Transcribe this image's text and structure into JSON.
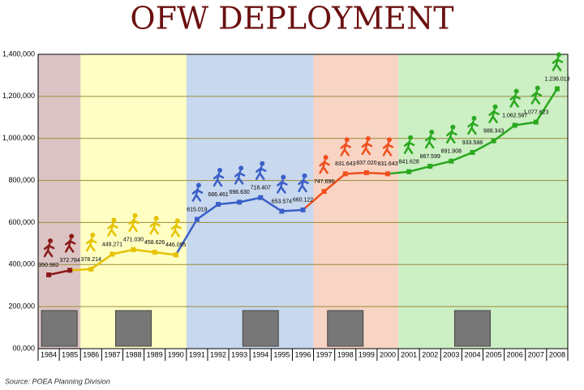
{
  "chart_data": {
    "type": "line",
    "title": "OFW DEPLOYMENT",
    "source": "Source: POEA Planning Division",
    "categories": [
      "1984",
      "1985",
      "1986",
      "1987",
      "1988",
      "1989",
      "1990",
      "1991",
      "1992",
      "1993",
      "1994",
      "1995",
      "1996",
      "1997",
      "1998",
      "1999",
      "2000",
      "2001",
      "2002",
      "2003",
      "2004",
      "2005",
      "2006",
      "2007",
      "2008"
    ],
    "values": [
      350982,
      372784,
      378214,
      449271,
      471030,
      458626,
      446095,
      615019,
      686461,
      696630,
      718407,
      653574,
      660122,
      747696,
      831643,
      837020,
      831643,
      841628,
      867599,
      891908,
      933588,
      988343,
      1062567,
      1077623,
      1236013
    ],
    "value_labels": [
      "350.982",
      "372.784",
      "378.214",
      "449.271",
      "471.030",
      "458.626",
      "446.095",
      "615.019",
      "686.461",
      "696.630",
      "718.407",
      "653.574",
      "660.122",
      "747.696",
      "831.643",
      "837.020",
      "831.643",
      "841.628",
      "867.599",
      "891.908",
      "933.588",
      "988.343",
      "1.062.567",
      "1.077.623",
      "1.236.013"
    ],
    "point_colors": [
      "#8b1a1a",
      "#8b1a1a",
      "#e6c200",
      "#e6c200",
      "#e6c200",
      "#e6c200",
      "#e6c200",
      "#3a5fc8",
      "#3a5fc8",
      "#3a5fc8",
      "#3a5fc8",
      "#3a5fc8",
      "#3a5fc8",
      "#f0501e",
      "#f0501e",
      "#f0501e",
      "#f0501e",
      "#2aa81e",
      "#2aa81e",
      "#2aa81e",
      "#2aa81e",
      "#2aa81e",
      "#2aa81e",
      "#2aa81e",
      "#2aa81e"
    ],
    "band_colors": [
      "#dcc4c4",
      "#dcc4c4",
      "#ffffc4",
      "#ffffc4",
      "#ffffc4",
      "#ffffc4",
      "#ffffc4",
      "#c8d8ef",
      "#c8d8ef",
      "#c8d8ef",
      "#c8d8ef",
      "#c8d8ef",
      "#c8d8ef",
      "#f8d4c4",
      "#f8d4c4",
      "#f8d4c4",
      "#f8d4c4",
      "#ccefc4",
      "#ccefc4",
      "#ccefc4",
      "#ccefc4",
      "#ccefc4",
      "#ccefc4",
      "#ccefc4",
      "#ccefc4"
    ],
    "ylim": [
      0,
      1400000
    ],
    "yticks": [
      {
        "value": 0,
        "label": "00,000"
      },
      {
        "value": 200000,
        "label": "200,000"
      },
      {
        "value": 400000,
        "label": "400,000"
      },
      {
        "value": 600000,
        "label": "600,000"
      },
      {
        "value": 800000,
        "label": "800,000"
      },
      {
        "value": 1000000,
        "label": "1,000,000"
      },
      {
        "value": 1200000,
        "label": "1,200,000"
      },
      {
        "value": 1400000,
        "label": "1,400,000"
      }
    ],
    "grid": true,
    "grid_color": "#9a8a3a"
  }
}
